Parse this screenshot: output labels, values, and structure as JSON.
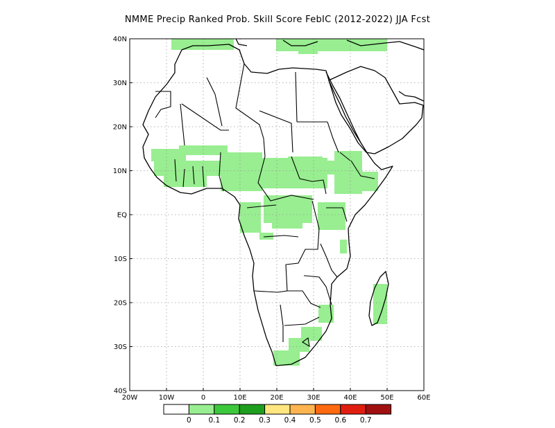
{
  "title": "NMME Precip Ranked Prob. Skill Score FebIC (2012-2022) JJA Fcst",
  "map": {
    "projection": "lat-lon",
    "lon_range": [
      -20,
      60
    ],
    "lat_range": [
      -40,
      40
    ],
    "lon_ticks": [
      "20W",
      "10W",
      "0",
      "10E",
      "20E",
      "30E",
      "40E",
      "50E",
      "60E"
    ],
    "lat_ticks": [
      "40N",
      "30N",
      "20N",
      "10N",
      "EQ",
      "10S",
      "20S",
      "30S",
      "40S"
    ],
    "grid": "dotted",
    "colors": {
      "land_outline": "#000000",
      "skill_shade": "#98ee90",
      "grid": "#9a9a9a"
    }
  },
  "colorbar": {
    "colors": [
      "#ffffff",
      "#98ee90",
      "#3cc83c",
      "#1e9e1e",
      "#ffe680",
      "#ffb450",
      "#ff6a10",
      "#e01e10",
      "#a01010"
    ],
    "labels": [
      "0",
      "0.1",
      "0.2",
      "0.3",
      "0.4",
      "0.5",
      "0.6",
      "0.7"
    ]
  }
}
